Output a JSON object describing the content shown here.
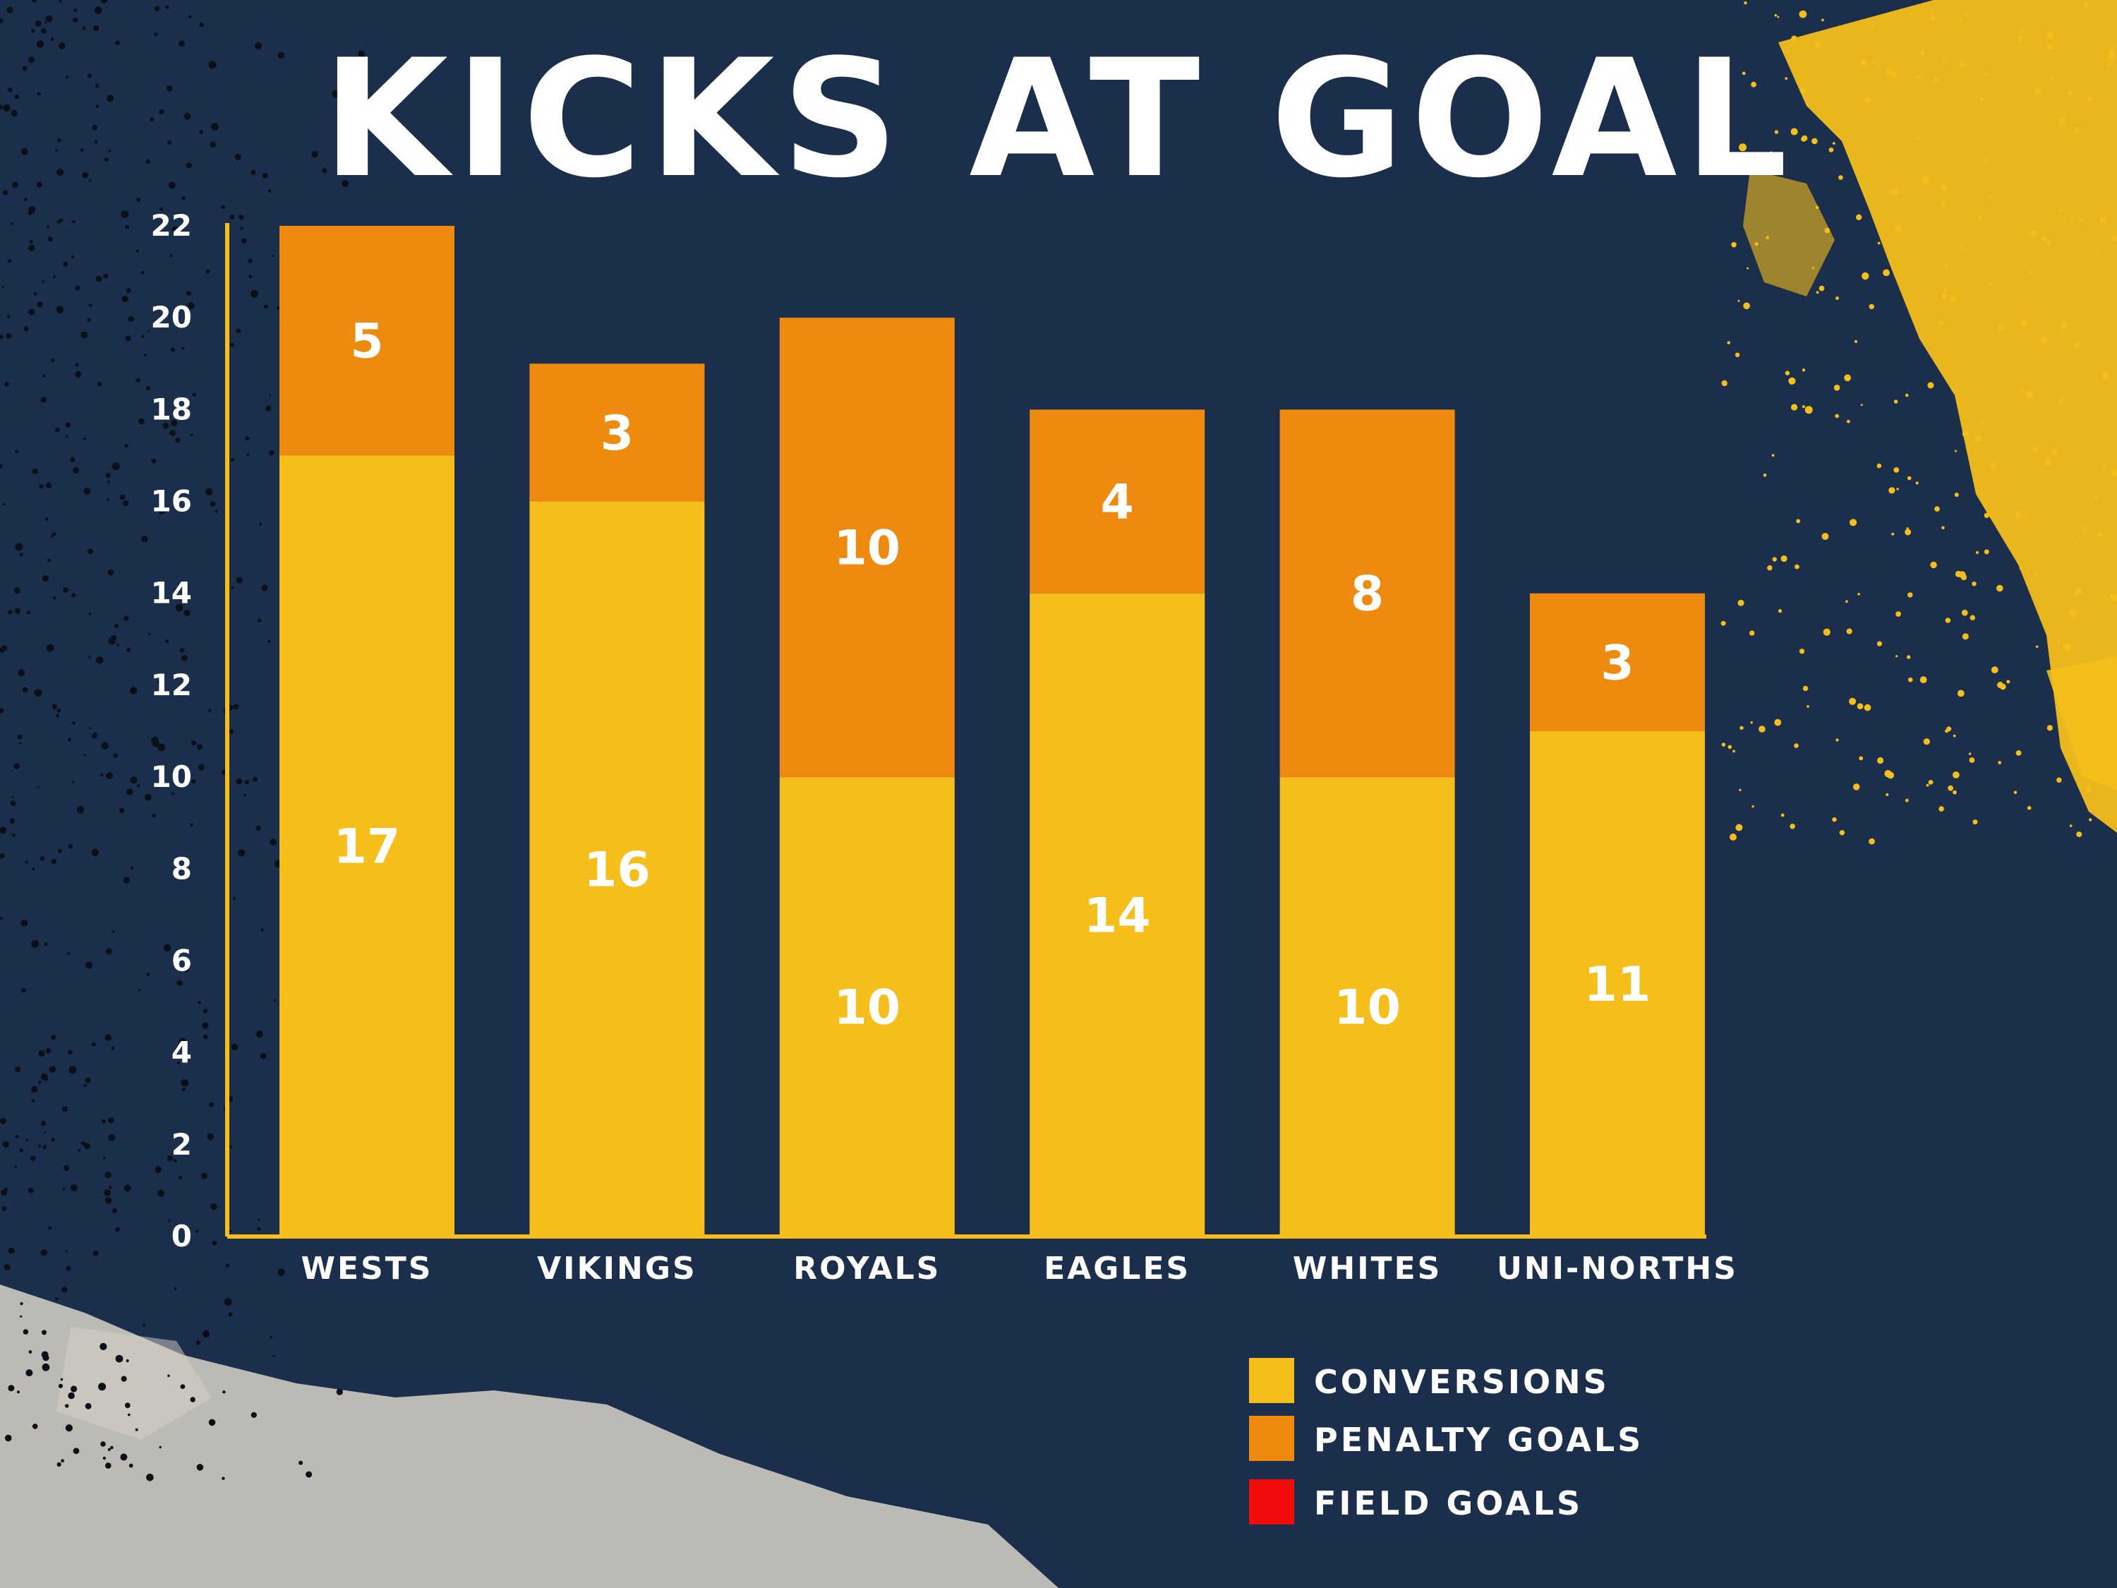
{
  "chart_data": {
    "type": "bar",
    "stacked": true,
    "title": "KICKS AT GOAL",
    "xlabel": "",
    "ylabel": "",
    "categories": [
      "WESTS",
      "VIKINGS",
      "ROYALS",
      "EAGLES",
      "WHITES",
      "UNI-NORTHS"
    ],
    "series": [
      {
        "name": "CONVERSIONS",
        "color": "#f6be1a",
        "values": [
          17,
          16,
          10,
          14,
          10,
          11
        ]
      },
      {
        "name": "PENALTY GOALS",
        "color": "#ef8a11",
        "values": [
          5,
          3,
          10,
          4,
          8,
          3
        ]
      },
      {
        "name": "FIELD GOALS",
        "color": "#f20d0d",
        "values": [
          0,
          0,
          0,
          0,
          0,
          0
        ]
      }
    ],
    "data_labels": {
      "CONVERSIONS": [
        "17",
        "16",
        "10",
        "14",
        "10",
        "11"
      ],
      "PENALTY GOALS": [
        "5",
        "3",
        "10",
        "4",
        "8",
        "3"
      ]
    },
    "ylim": [
      0,
      22
    ],
    "yticks": [
      "0",
      "2",
      "4",
      "6",
      "8",
      "10",
      "12",
      "14",
      "16",
      "18",
      "20",
      "22"
    ],
    "grid": false,
    "legend": "bottom-right",
    "axis_color": "#f6be1a",
    "label_color": "#ffffff"
  }
}
